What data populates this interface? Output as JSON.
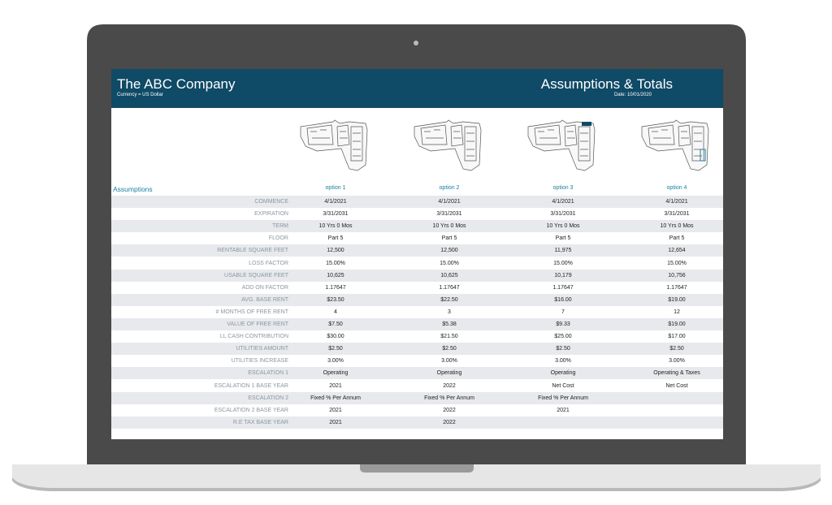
{
  "header": {
    "title": "The ABC Company",
    "subtitle": "Currency = US Dollar",
    "right_title": "Assumptions & Totals",
    "date": "Date: 10/01/2020"
  },
  "table": {
    "section": "Assumptions",
    "columns": [
      "option 1",
      "option 2",
      "option 3",
      "option 4"
    ],
    "rows": [
      {
        "label": "COMMENCE",
        "cells": [
          "4/1/2021",
          "4/1/2021",
          "4/1/2021",
          "4/1/2021"
        ]
      },
      {
        "label": "EXPIRATION",
        "cells": [
          "3/31/2031",
          "3/31/2031",
          "3/31/2031",
          "3/31/2031"
        ]
      },
      {
        "label": "TERM",
        "cells": [
          "10 Yrs 0 Mos",
          "10 Yrs 0 Mos",
          "10 Yrs 0 Mos",
          "10 Yrs 0 Mos"
        ]
      },
      {
        "label": "FLOOR",
        "cells": [
          "Part 5",
          "Part 5",
          "Part 5",
          "Part 5"
        ]
      },
      {
        "label": "RENTABLE SQUARE FEET",
        "cells": [
          "12,500",
          "12,500",
          "11,975",
          "12,654"
        ]
      },
      {
        "label": "LOSS FACTOR",
        "cells": [
          "15.00%",
          "15.00%",
          "15.00%",
          "15.00%"
        ]
      },
      {
        "label": "USABLE SQUARE FEET",
        "cells": [
          "10,625",
          "10,625",
          "10,179",
          "10,756"
        ]
      },
      {
        "label": "ADD ON FACTOR",
        "cells": [
          "1.17647",
          "1.17647",
          "1.17647",
          "1.17647"
        ]
      },
      {
        "label": "AVG. BASE RENT",
        "cells": [
          "$23.50",
          "$22.50",
          "$16.00",
          "$19.00"
        ]
      },
      {
        "label": "# MONTHS OF FREE RENT",
        "cells": [
          "4",
          "3",
          "7",
          "12"
        ]
      },
      {
        "label": "VALUE OF FREE RENT",
        "cells": [
          "$7.50",
          "$5.38",
          "$9.33",
          "$19.00"
        ]
      },
      {
        "label": "LL CASH CONTRIBUTION",
        "cells": [
          "$30.00",
          "$21.50",
          "$25.00",
          "$17.00"
        ]
      },
      {
        "label": "UTILITIES AMOUNT",
        "cells": [
          "$2.50",
          "$2.50",
          "$2.50",
          "$2.50"
        ]
      },
      {
        "label": "UTILITIES INCREASE",
        "cells": [
          "3.00%",
          "3.00%",
          "3.00%",
          "3.00%"
        ]
      },
      {
        "label": "ESCALATION 1",
        "cells": [
          "Operating",
          "Operating",
          "Operating",
          "Operating & Taxes"
        ]
      },
      {
        "label": "ESCALATION 1 BASE YEAR",
        "cells": [
          "2021",
          "2022",
          "Net Cost",
          "Net Cost"
        ]
      },
      {
        "label": "ESCALATION 2",
        "cells": [
          "Fixed % Per Annum",
          "Fixed % Per Annum",
          "Fixed % Per Annum"
        ]
      },
      {
        "label": "ESCALATION 2 BASE YEAR",
        "cells": [
          "2021",
          "2022",
          "2021"
        ]
      },
      {
        "label": "R.E TAX BASE YEAR",
        "cells": [
          "2021",
          "2022"
        ]
      }
    ]
  }
}
